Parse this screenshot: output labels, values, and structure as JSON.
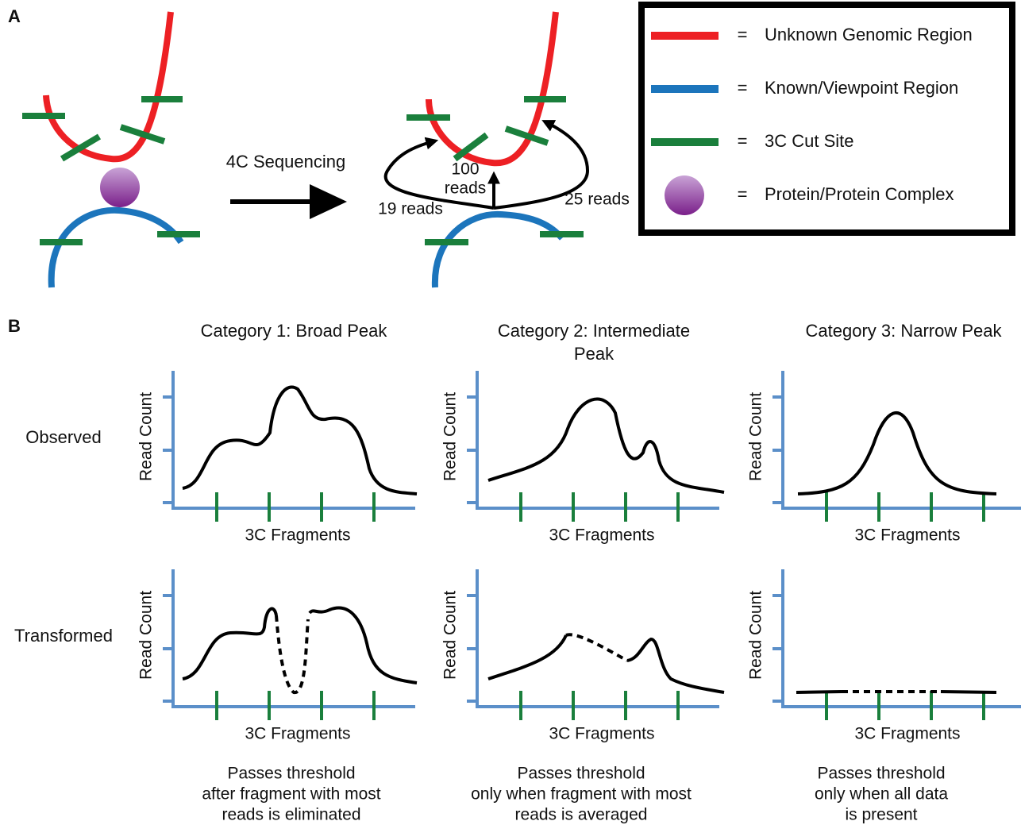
{
  "panel_a": {
    "label": "A",
    "arrow_label": "4C Sequencing",
    "read_labels": {
      "center": [
        "100",
        "reads"
      ],
      "left": "19 reads",
      "right": "25 reads"
    },
    "legend": [
      {
        "symbol": "=",
        "text": "Unknown Genomic Region"
      },
      {
        "symbol": "=",
        "text": "Known/Viewpoint Region"
      },
      {
        "symbol": "=",
        "text": "3C Cut Site"
      },
      {
        "symbol": "=",
        "text": "Protein/Protein Complex"
      }
    ]
  },
  "panel_b": {
    "label": "B",
    "columns": [
      [
        "Category 1:  Broad Peak"
      ],
      [
        "Category 2:  Intermediate",
        "Peak"
      ],
      [
        "Category 3:  Narrow Peak"
      ]
    ],
    "rows": [
      "Observed",
      "Transformed"
    ],
    "plots": [
      [
        {
          "y_label": "Read Count",
          "x_label": "3C Fragments"
        },
        {
          "y_label": "Read Count",
          "x_label": "3C Fragments"
        },
        {
          "y_label": "Read Count",
          "x_label": "3C Fragments"
        }
      ],
      [
        {
          "y_label": "Read Count",
          "x_label": "3C Fragments"
        },
        {
          "y_label": "Read Count",
          "x_label": "3C Fragments"
        },
        {
          "y_label": "Read Count",
          "x_label": "3C Fragments"
        }
      ]
    ],
    "captions": [
      [
        "Passes threshold",
        "after fragment with most",
        "reads is eliminated"
      ],
      [
        "Passes threshold",
        "only when fragment with most",
        "reads is averaged"
      ],
      [
        "Passes threshold",
        "only when all data",
        "is present"
      ]
    ]
  }
}
